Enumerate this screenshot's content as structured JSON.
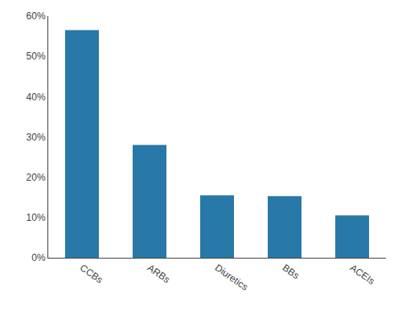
{
  "chart_data": {
    "type": "bar",
    "categories": [
      "CCBs",
      "ARBs",
      "Diuretics",
      "BBs",
      "ACEIs"
    ],
    "values": [
      0.565,
      0.28,
      0.155,
      0.153,
      0.105
    ],
    "color": "#2878a8",
    "ylim": [
      0,
      0.6
    ],
    "yticks": [
      {
        "value": 0.0,
        "label": "0%"
      },
      {
        "value": 0.1,
        "label": "10%"
      },
      {
        "value": 0.2,
        "label": "20%"
      },
      {
        "value": 0.3,
        "label": "30%"
      },
      {
        "value": 0.4,
        "label": "40%"
      },
      {
        "value": 0.5,
        "label": "50%"
      },
      {
        "value": 0.6,
        "label": "60%"
      }
    ],
    "grid": false
  }
}
